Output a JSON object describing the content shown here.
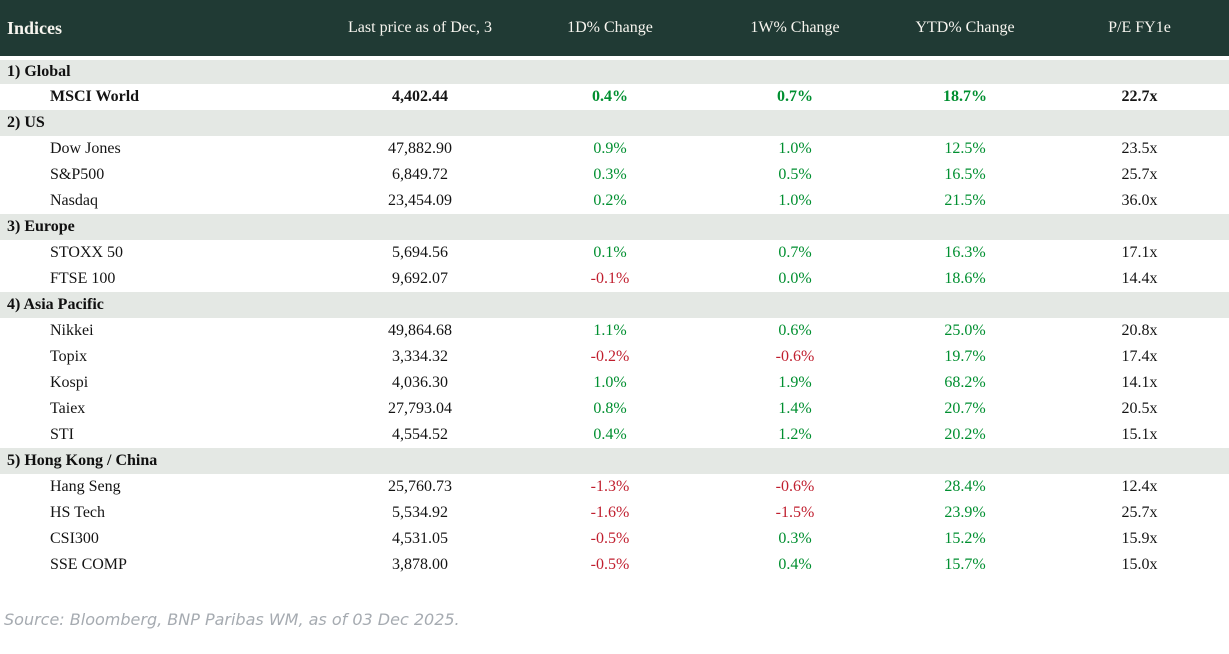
{
  "chart_data": {
    "type": "table",
    "title": "Indices",
    "columns": [
      "Indices",
      "Last price as of Dec, 3",
      "1D% Change",
      "1W% Change",
      "YTD% Change",
      "P/E FY1e"
    ],
    "sections": [
      {
        "label": "1) Global",
        "rows": [
          {
            "name": "MSCI World",
            "last_price": "4,402.44",
            "change_1d": "0.4%",
            "change_1w": "0.7%",
            "change_ytd": "18.7%",
            "pe_fy1e": "22.7x",
            "emphasis": true
          }
        ]
      },
      {
        "label": "2) US",
        "rows": [
          {
            "name": "Dow Jones",
            "last_price": "47,882.90",
            "change_1d": "0.9%",
            "change_1w": "1.0%",
            "change_ytd": "12.5%",
            "pe_fy1e": "23.5x",
            "emphasis": false
          },
          {
            "name": "S&P500",
            "last_price": "6,849.72",
            "change_1d": "0.3%",
            "change_1w": "0.5%",
            "change_ytd": "16.5%",
            "pe_fy1e": "25.7x",
            "emphasis": false
          },
          {
            "name": "Nasdaq",
            "last_price": "23,454.09",
            "change_1d": "0.2%",
            "change_1w": "1.0%",
            "change_ytd": "21.5%",
            "pe_fy1e": "36.0x",
            "emphasis": false
          }
        ]
      },
      {
        "label": "3) Europe",
        "rows": [
          {
            "name": "STOXX 50",
            "last_price": "5,694.56",
            "change_1d": "0.1%",
            "change_1w": "0.7%",
            "change_ytd": "16.3%",
            "pe_fy1e": "17.1x",
            "emphasis": false
          },
          {
            "name": "FTSE 100",
            "last_price": "9,692.07",
            "change_1d": "-0.1%",
            "change_1w": "0.0%",
            "change_ytd": "18.6%",
            "pe_fy1e": "14.4x",
            "emphasis": false
          }
        ]
      },
      {
        "label": "4) Asia Pacific",
        "rows": [
          {
            "name": "Nikkei",
            "last_price": "49,864.68",
            "change_1d": "1.1%",
            "change_1w": "0.6%",
            "change_ytd": "25.0%",
            "pe_fy1e": "20.8x",
            "emphasis": false
          },
          {
            "name": "Topix",
            "last_price": "3,334.32",
            "change_1d": "-0.2%",
            "change_1w": "-0.6%",
            "change_ytd": "19.7%",
            "pe_fy1e": "17.4x",
            "emphasis": false
          },
          {
            "name": "Kospi",
            "last_price": "4,036.30",
            "change_1d": "1.0%",
            "change_1w": "1.9%",
            "change_ytd": "68.2%",
            "pe_fy1e": "14.1x",
            "emphasis": false
          },
          {
            "name": "Taiex",
            "last_price": "27,793.04",
            "change_1d": "0.8%",
            "change_1w": "1.4%",
            "change_ytd": "20.7%",
            "pe_fy1e": "20.5x",
            "emphasis": false
          },
          {
            "name": "STI",
            "last_price": "4,554.52",
            "change_1d": "0.4%",
            "change_1w": "1.2%",
            "change_ytd": "20.2%",
            "pe_fy1e": "15.1x",
            "emphasis": false
          }
        ]
      },
      {
        "label": "5) Hong Kong / China",
        "rows": [
          {
            "name": "Hang Seng",
            "last_price": "25,760.73",
            "change_1d": "-1.3%",
            "change_1w": "-0.6%",
            "change_ytd": "28.4%",
            "pe_fy1e": "12.4x",
            "emphasis": false
          },
          {
            "name": "HS Tech",
            "last_price": "5,534.92",
            "change_1d": "-1.6%",
            "change_1w": "-1.5%",
            "change_ytd": "23.9%",
            "pe_fy1e": "25.7x",
            "emphasis": false
          },
          {
            "name": "CSI300",
            "last_price": "4,531.05",
            "change_1d": "-0.5%",
            "change_1w": "0.3%",
            "change_ytd": "15.2%",
            "pe_fy1e": "15.9x",
            "emphasis": false
          },
          {
            "name": "SSE COMP",
            "last_price": "3,878.00",
            "change_1d": "-0.5%",
            "change_1w": "0.4%",
            "change_ytd": "15.7%",
            "pe_fy1e": "15.0x",
            "emphasis": false
          }
        ]
      }
    ],
    "layout": {
      "positive_change_color_rule": "green for values >= 0, red for negative",
      "numeric_columns_alignment": "center"
    }
  },
  "footer": {
    "source": "Source: Bloomberg, BNP Paribas WM, as of 03 Dec 2025."
  },
  "colors": {
    "header_bg": "#203a34",
    "header_text": "#f7f5ef",
    "section_bg": "#e4e8e4",
    "positive": "#008f30",
    "negative": "#c01e2e",
    "text": "#141414",
    "source_text": "#a6abb1"
  }
}
